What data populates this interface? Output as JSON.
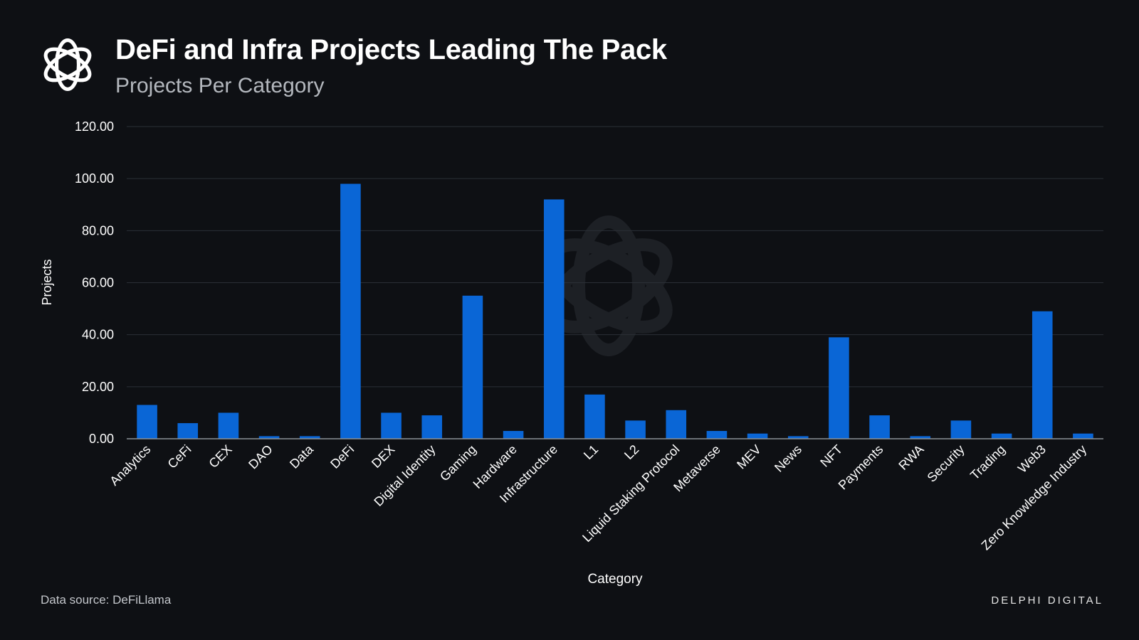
{
  "header": {
    "title": "DeFi and Infra Projects Leading The Pack",
    "subtitle": "Projects Per Category",
    "logo_icon": "delphi-knot-icon"
  },
  "footer": {
    "source": "Data source: DeFiLlama",
    "brand": "DELPHI DIGITAL"
  },
  "colors": {
    "background": "#0e1014",
    "bar": "#0a66d6",
    "grid": "#2b2f36",
    "text": "#ffffff",
    "subtitle": "#b4b8be"
  },
  "chart_data": {
    "type": "bar",
    "title": "",
    "xlabel": "Category",
    "ylabel": "Projects",
    "ylim": [
      0,
      120
    ],
    "yticks": [
      "0.00",
      "20.00",
      "40.00",
      "60.00",
      "80.00",
      "100.00",
      "120.00"
    ],
    "grid": true,
    "legend": "none",
    "categories": [
      "Analytics",
      "CeFi",
      "CEX",
      "DAO",
      "Data",
      "DeFi",
      "DEX",
      "Digital Identity",
      "Gaming",
      "Hardware",
      "Infrastructure",
      "L1",
      "L2",
      "Liquid Staking Protocol",
      "Metaverse",
      "MEV",
      "News",
      "NFT",
      "Payments",
      "RWA",
      "Security",
      "Trading",
      "Web3",
      "Zero Knowledge Industry"
    ],
    "values": [
      13,
      6,
      10,
      1,
      1,
      98,
      10,
      9,
      55,
      3,
      92,
      17,
      7,
      11,
      3,
      2,
      1,
      39,
      9,
      1,
      7,
      2,
      49,
      2
    ]
  }
}
